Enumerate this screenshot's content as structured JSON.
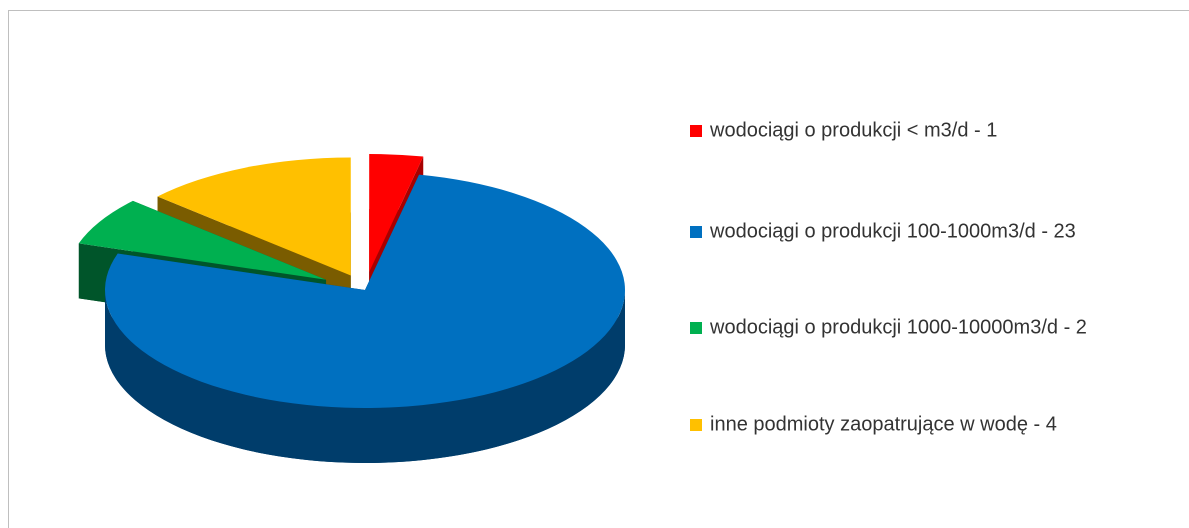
{
  "chart_data": {
    "type": "pie3d",
    "categories": [
      "wodociągi o produkcji < m3/d - 1",
      "wodociągi o produkcji 100-1000m3/d - 23",
      "wodociągi o produkcji 1000-10000m3/d - 2",
      "inne podmioty zaopatrujące w wodę - 4"
    ],
    "values": [
      1,
      23,
      2,
      4
    ],
    "colors": [
      "#ff0000",
      "#0070c0",
      "#00b050",
      "#ffc000"
    ],
    "side_colors": [
      "#a80000",
      "#003d6b",
      "#00552a",
      "#7a5c00"
    ],
    "legend": "right"
  }
}
